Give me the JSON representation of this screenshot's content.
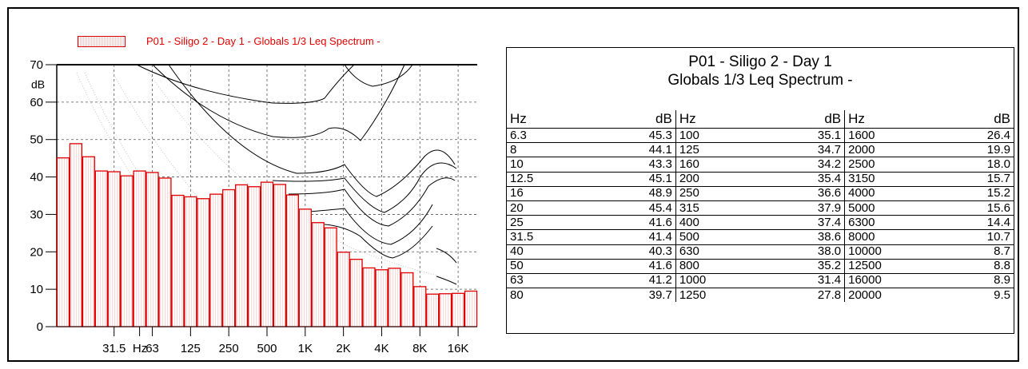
{
  "colors": {
    "bar_stroke": "#e00000",
    "bar_fill": "#f7dada",
    "legend_text": "#e00000",
    "axis": "#000000"
  },
  "legend": {
    "label": "P01 - Siligo 2 - Day 1 - Globals 1/3 Leq Spectrum -",
    "swatch_icon": "hatched-bar-swatch"
  },
  "table": {
    "title_line1": "P01 - Siligo 2 - Day 1",
    "title_line2": "Globals 1/3 Leq Spectrum -",
    "headers": [
      "Hz",
      "dB",
      "Hz",
      "dB",
      "Hz",
      "dB"
    ],
    "rows": [
      [
        "6.3",
        "45.3",
        "100",
        "35.1",
        "1600",
        "26.4"
      ],
      [
        "8",
        "44.1",
        "125",
        "34.7",
        "2000",
        "19.9"
      ],
      [
        "10",
        "43.3",
        "160",
        "34.2",
        "2500",
        "18.0"
      ],
      [
        "12.5",
        "45.1",
        "200",
        "35.4",
        "3150",
        "15.7"
      ],
      [
        "16",
        "48.9",
        "250",
        "36.6",
        "4000",
        "15.2"
      ],
      [
        "20",
        "45.4",
        "315",
        "37.9",
        "5000",
        "15.6"
      ],
      [
        "25",
        "41.6",
        "400",
        "37.4",
        "6300",
        "14.4"
      ],
      [
        "31.5",
        "41.4",
        "500",
        "38.6",
        "8000",
        "10.7"
      ],
      [
        "40",
        "40.3",
        "630",
        "38.0",
        "10000",
        "8.7"
      ],
      [
        "50",
        "41.6",
        "800",
        "35.2",
        "12500",
        "8.8"
      ],
      [
        "63",
        "41.2",
        "1000",
        "31.4",
        "16000",
        "8.9"
      ],
      [
        "80",
        "39.7",
        "1250",
        "27.8",
        "20000",
        "9.5"
      ]
    ]
  },
  "chart_data": {
    "type": "bar",
    "title": "",
    "xlabel": "",
    "ylabel": "dB",
    "ylim": [
      0,
      70
    ],
    "yticks": [
      0,
      10,
      20,
      30,
      40,
      50,
      60,
      70
    ],
    "xtick_labels": [
      "31.5",
      "Hz",
      "63",
      "125",
      "250",
      "500",
      "1K",
      "2K",
      "4K",
      "8K",
      "16K"
    ],
    "grid": true,
    "legend_position": "top-left",
    "categories": [
      "12.5",
      "16",
      "20",
      "25",
      "31.5",
      "40",
      "50",
      "63",
      "80",
      "100",
      "125",
      "160",
      "200",
      "250",
      "315",
      "400",
      "500",
      "630",
      "800",
      "1000",
      "1250",
      "1600",
      "2000",
      "2500",
      "3150",
      "4000",
      "5000",
      "6300",
      "8000",
      "10000",
      "12500",
      "16000",
      "20000"
    ],
    "series": [
      {
        "name": "P01 - Siligo 2 - Day 1 - Globals 1/3 Leq Spectrum -",
        "values": [
          45.1,
          48.9,
          45.4,
          41.6,
          41.4,
          40.3,
          41.6,
          41.2,
          39.7,
          35.1,
          34.7,
          34.2,
          35.4,
          36.6,
          37.9,
          37.4,
          38.6,
          38.0,
          35.2,
          31.4,
          27.8,
          26.4,
          19.9,
          18.0,
          15.7,
          15.2,
          15.6,
          14.4,
          10.7,
          8.7,
          8.8,
          8.9,
          9.5
        ]
      }
    ],
    "background_curves": "equal-loudness contours"
  }
}
